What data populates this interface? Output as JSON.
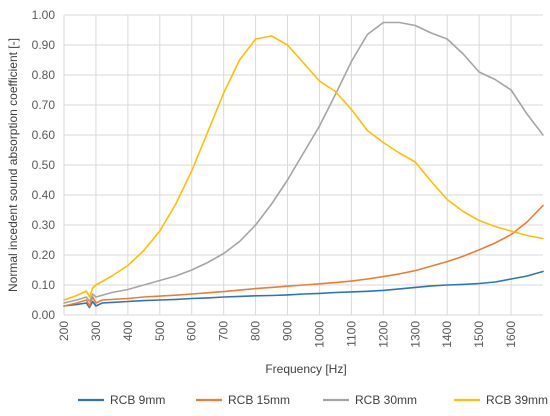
{
  "chart_data": {
    "type": "line",
    "title": "",
    "xlabel": "Frequency [Hz]",
    "ylabel": "Normal incedent sound absorption coefficient [-]",
    "xlim": [
      200,
      1700
    ],
    "ylim": [
      0,
      1
    ],
    "grid": true,
    "legend_position": "bottom",
    "x_ticks": [
      200,
      300,
      400,
      500,
      600,
      700,
      800,
      900,
      1000,
      1100,
      1200,
      1300,
      1400,
      1500,
      1600
    ],
    "x_tick_labels": [
      "200",
      "300",
      "400",
      "500",
      "600",
      "700",
      "800",
      "900",
      "1000",
      "1100",
      "1200",
      "1300",
      "1400",
      "1500",
      "1600"
    ],
    "y_ticks": [
      0,
      0.1,
      0.2,
      0.3,
      0.4,
      0.5,
      0.6,
      0.7,
      0.8,
      0.9,
      1.0
    ],
    "y_tick_labels": [
      "0.00",
      "0.10",
      "0.20",
      "0.30",
      "0.40",
      "0.50",
      "0.60",
      "0.70",
      "0.80",
      "0.90",
      "1.00"
    ],
    "series": [
      {
        "name": "RCB 9mm",
        "color": "#2e75b6",
        "x": [
          200,
          240,
          270,
          280,
          290,
          300,
          320,
          350,
          400,
          450,
          500,
          550,
          600,
          650,
          700,
          750,
          800,
          850,
          900,
          950,
          1000,
          1050,
          1100,
          1150,
          1200,
          1250,
          1300,
          1350,
          1400,
          1450,
          1500,
          1550,
          1600,
          1650,
          1700
        ],
        "y": [
          0.03,
          0.035,
          0.04,
          0.025,
          0.045,
          0.03,
          0.04,
          0.042,
          0.045,
          0.048,
          0.05,
          0.052,
          0.055,
          0.057,
          0.06,
          0.062,
          0.064,
          0.065,
          0.067,
          0.07,
          0.072,
          0.075,
          0.077,
          0.079,
          0.082,
          0.087,
          0.092,
          0.097,
          0.1,
          0.102,
          0.105,
          0.11,
          0.12,
          0.13,
          0.145
        ]
      },
      {
        "name": "RCB 15mm",
        "color": "#ed7d31",
        "x": [
          200,
          240,
          270,
          280,
          290,
          300,
          320,
          350,
          400,
          450,
          500,
          550,
          600,
          650,
          700,
          750,
          800,
          850,
          900,
          950,
          1000,
          1050,
          1100,
          1150,
          1200,
          1250,
          1300,
          1350,
          1400,
          1450,
          1500,
          1550,
          1600,
          1650,
          1700
        ],
        "y": [
          0.03,
          0.04,
          0.05,
          0.03,
          0.06,
          0.04,
          0.05,
          0.052,
          0.055,
          0.06,
          0.063,
          0.066,
          0.07,
          0.074,
          0.078,
          0.083,
          0.088,
          0.092,
          0.096,
          0.1,
          0.104,
          0.108,
          0.113,
          0.12,
          0.128,
          0.137,
          0.148,
          0.163,
          0.178,
          0.196,
          0.217,
          0.24,
          0.268,
          0.31,
          0.365
        ]
      },
      {
        "name": "RCB 30mm",
        "color": "#a5a5a5",
        "x": [
          200,
          240,
          270,
          280,
          290,
          300,
          350,
          400,
          450,
          500,
          550,
          600,
          650,
          700,
          750,
          800,
          850,
          900,
          950,
          1000,
          1050,
          1100,
          1150,
          1200,
          1250,
          1300,
          1350,
          1400,
          1450,
          1500,
          1550,
          1600,
          1650,
          1700
        ],
        "y": [
          0.04,
          0.05,
          0.06,
          0.045,
          0.07,
          0.06,
          0.075,
          0.085,
          0.1,
          0.115,
          0.13,
          0.15,
          0.175,
          0.205,
          0.245,
          0.3,
          0.37,
          0.45,
          0.54,
          0.63,
          0.735,
          0.845,
          0.935,
          0.975,
          0.975,
          0.965,
          0.94,
          0.92,
          0.87,
          0.81,
          0.785,
          0.75,
          0.67,
          0.6
        ]
      },
      {
        "name": "RCB 39mm",
        "color": "#ffc000",
        "x": [
          200,
          240,
          270,
          280,
          290,
          300,
          350,
          400,
          450,
          500,
          550,
          600,
          650,
          700,
          750,
          800,
          850,
          900,
          950,
          1000,
          1050,
          1100,
          1150,
          1200,
          1250,
          1300,
          1350,
          1400,
          1450,
          1500,
          1550,
          1600,
          1650,
          1700
        ],
        "y": [
          0.05,
          0.065,
          0.08,
          0.06,
          0.09,
          0.1,
          0.13,
          0.165,
          0.215,
          0.28,
          0.37,
          0.48,
          0.61,
          0.74,
          0.85,
          0.92,
          0.93,
          0.9,
          0.84,
          0.78,
          0.745,
          0.685,
          0.615,
          0.575,
          0.54,
          0.51,
          0.445,
          0.385,
          0.345,
          0.315,
          0.295,
          0.28,
          0.265,
          0.255
        ]
      }
    ]
  }
}
